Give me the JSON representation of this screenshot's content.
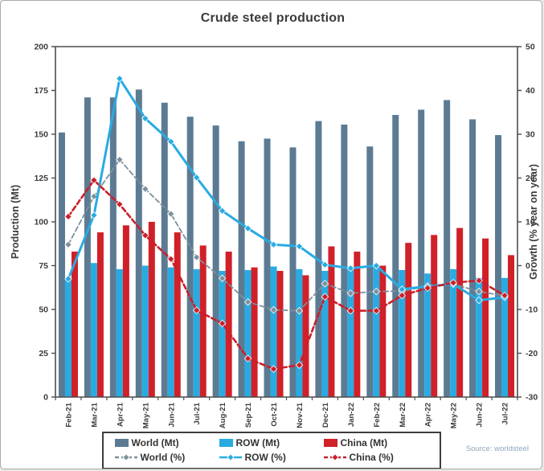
{
  "header": {
    "title": "Crude steel production"
  },
  "source": "Source: worldsteel",
  "chart_data": {
    "type": "combo bar+line",
    "title": "Crude steel production",
    "categories": [
      "Feb-21",
      "Mar-21",
      "Apr-21",
      "May-21",
      "Jun-21",
      "Jul-21",
      "Aug-21",
      "Sep-21",
      "Oct-21",
      "Nov-21",
      "Dec-21",
      "Jan-22",
      "Feb-22",
      "Mar-22",
      "Apr-22",
      "May-22",
      "Jun-22",
      "Jul-22"
    ],
    "bar_series": [
      {
        "name": "World (Mt)",
        "color": "#5c7b93",
        "axis": "left",
        "values": [
          151,
          171,
          171,
          175.5,
          168,
          160,
          155,
          146,
          147.5,
          142.5,
          157.5,
          155.5,
          143,
          161,
          164,
          169.5,
          158.5,
          149.5
        ]
      },
      {
        "name": "ROW (Mt)",
        "color": "#29abe2",
        "axis": "left",
        "values": [
          68,
          76.5,
          73,
          75,
          74,
          73,
          72,
          72.5,
          74.5,
          73,
          72,
          73.5,
          74.5,
          72.5,
          70.5,
          73,
          68,
          68
        ]
      },
      {
        "name": "China (Mt)",
        "color": "#d02028",
        "axis": "left",
        "values": [
          83,
          94,
          98,
          100,
          94,
          86.5,
          83,
          74,
          72,
          69.5,
          86,
          83,
          75,
          88,
          92.5,
          96.5,
          90.5,
          81
        ]
      }
    ],
    "line_series": [
      {
        "name": "World (%)",
        "color": "#7d909c",
        "dashed": true,
        "width": 1.8,
        "axis": "right",
        "values": [
          4.8,
          15.8,
          24.2,
          17.5,
          11.8,
          1.9,
          -2.9,
          -8.3,
          -10.1,
          -10.3,
          -4.1,
          -6.3,
          -5.9,
          -5.8,
          -4.7,
          -4.2,
          -5.9,
          -6.9
        ]
      },
      {
        "name": "ROW (%)",
        "color": "#29abe2",
        "dashed": false,
        "width": 3,
        "axis": "right",
        "values": [
          -3.0,
          11.5,
          42.7,
          33.6,
          28.3,
          20.1,
          12.5,
          8.5,
          4.8,
          4.4,
          0.2,
          -0.6,
          0.0,
          -5.4,
          -4.7,
          -4.2,
          -7.9,
          -7.2
        ]
      },
      {
        "name": "China (%)",
        "color": "#c9202b",
        "dashed": true,
        "width": 2.6,
        "axis": "right",
        "values": [
          11.2,
          19.5,
          14.0,
          6.9,
          1.5,
          -10.2,
          -13.2,
          -21.2,
          -23.6,
          -22.7,
          -7.1,
          -10.3,
          -10.3,
          -6.8,
          -5.1,
          -3.9,
          -3.4,
          -6.8
        ]
      }
    ],
    "left_axis": {
      "label": "Production (Mt)",
      "min": 0,
      "max": 200,
      "ticks": [
        0,
        25,
        50,
        75,
        100,
        125,
        150,
        175,
        200
      ]
    },
    "right_axis": {
      "label": "Growth (% year on year)",
      "min": -30,
      "max": 50,
      "ticks": [
        -30,
        -20,
        -10,
        0,
        10,
        20,
        30,
        40,
        50
      ]
    },
    "grid": false,
    "legend_position": "bottom",
    "legend": [
      {
        "label": "World (Mt)",
        "type": "bar",
        "color": "#5c7b93"
      },
      {
        "label": "ROW (Mt)",
        "type": "bar",
        "color": "#29abe2"
      },
      {
        "label": "China (Mt)",
        "type": "bar",
        "color": "#d02028"
      },
      {
        "label": "World (%)",
        "type": "line",
        "color": "#7d909c",
        "dashed": true
      },
      {
        "label": "ROW (%)",
        "type": "line",
        "color": "#29abe2",
        "dashed": false
      },
      {
        "label": "China (%)",
        "type": "line",
        "color": "#c9202b",
        "dashed": true
      }
    ]
  }
}
